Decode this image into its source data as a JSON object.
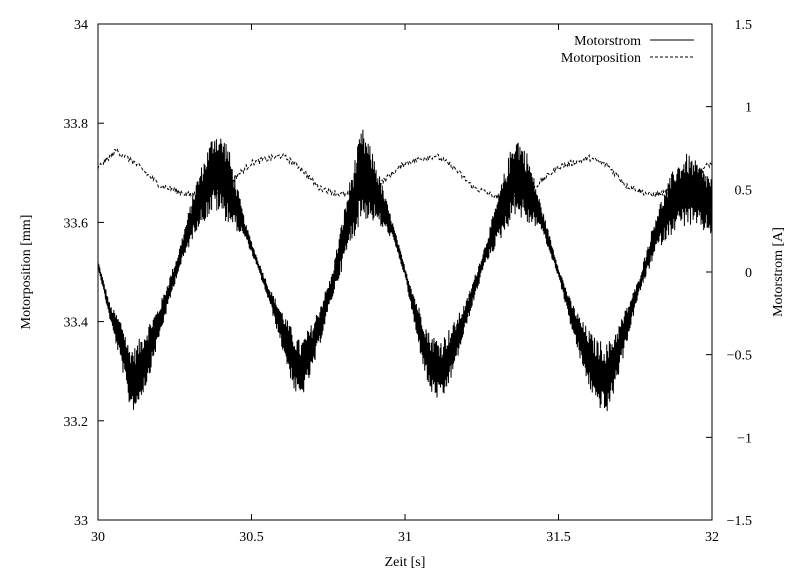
{
  "chart_data": {
    "type": "line",
    "xlabel": "Zeit [s]",
    "ylabel_left": "Motorposition [mm]",
    "ylabel_right": "Motorstrom [A]",
    "xlim": [
      30,
      32
    ],
    "ylim_left": [
      33,
      34
    ],
    "ylim_right": [
      -1.5,
      1.5
    ],
    "x_ticks": [
      "30",
      "30.5",
      "31",
      "31.5",
      "32"
    ],
    "y_left_ticks": [
      "33",
      "33.2",
      "33.4",
      "33.6",
      "33.8",
      "34"
    ],
    "y_right_ticks": [
      "−1.5",
      "−1",
      "−0.5",
      "0",
      "0.5",
      "1",
      "1.5"
    ],
    "grid": false,
    "legend_position": "top-right",
    "series": [
      {
        "name": "Motorstrom",
        "axis": "right",
        "style": "solid",
        "x": [
          30.0,
          30.04,
          30.08,
          30.1,
          30.12,
          30.16,
          30.2,
          30.26,
          30.32,
          30.38,
          30.42,
          30.48,
          30.52,
          30.56,
          30.6,
          30.64,
          30.66,
          30.7,
          30.76,
          30.82,
          30.86,
          30.9,
          30.96,
          31.0,
          31.04,
          31.08,
          31.12,
          31.16,
          31.2,
          31.26,
          31.32,
          31.36,
          31.4,
          31.44,
          31.5,
          31.54,
          31.58,
          31.62,
          31.66,
          31.7,
          31.76,
          31.82,
          31.88,
          31.92,
          31.96,
          32.0
        ],
        "values": [
          0.05,
          -0.25,
          -0.45,
          -0.62,
          -0.65,
          -0.5,
          -0.3,
          0.05,
          0.4,
          0.62,
          0.55,
          0.25,
          0.05,
          -0.15,
          -0.35,
          -0.55,
          -0.6,
          -0.45,
          -0.1,
          0.35,
          0.6,
          0.5,
          0.25,
          0.0,
          -0.3,
          -0.55,
          -0.6,
          -0.45,
          -0.25,
          0.1,
          0.4,
          0.6,
          0.5,
          0.35,
          0.0,
          -0.25,
          -0.45,
          -0.6,
          -0.65,
          -0.45,
          -0.1,
          0.25,
          0.45,
          0.5,
          0.45,
          0.4
        ],
        "noise_amplitude": [
          0.02,
          0.05,
          0.15,
          0.18,
          0.2,
          0.18,
          0.1,
          0.06,
          0.15,
          0.25,
          0.25,
          0.05,
          0.03,
          0.05,
          0.12,
          0.18,
          0.18,
          0.15,
          0.08,
          0.2,
          0.28,
          0.2,
          0.05,
          0.03,
          0.12,
          0.18,
          0.2,
          0.15,
          0.08,
          0.06,
          0.18,
          0.25,
          0.22,
          0.08,
          0.03,
          0.08,
          0.15,
          0.2,
          0.22,
          0.15,
          0.05,
          0.12,
          0.2,
          0.22,
          0.2,
          0.18
        ]
      },
      {
        "name": "Motorposition",
        "axis": "left",
        "style": "dashed",
        "x": [
          30.0,
          30.06,
          30.12,
          30.2,
          30.3,
          30.4,
          30.5,
          30.6,
          30.66,
          30.72,
          30.8,
          30.9,
          31.0,
          31.1,
          31.16,
          31.22,
          31.3,
          31.4,
          31.5,
          31.6,
          31.66,
          31.72,
          31.8,
          31.9,
          31.96,
          32.0
        ],
        "values": [
          33.71,
          33.745,
          33.72,
          33.675,
          33.655,
          33.665,
          33.72,
          33.735,
          33.71,
          33.67,
          33.655,
          33.668,
          33.72,
          33.735,
          33.71,
          33.672,
          33.65,
          33.66,
          33.712,
          33.73,
          33.715,
          33.675,
          33.655,
          33.665,
          33.705,
          33.72
        ],
        "noise_amplitude": 0.006
      }
    ]
  }
}
